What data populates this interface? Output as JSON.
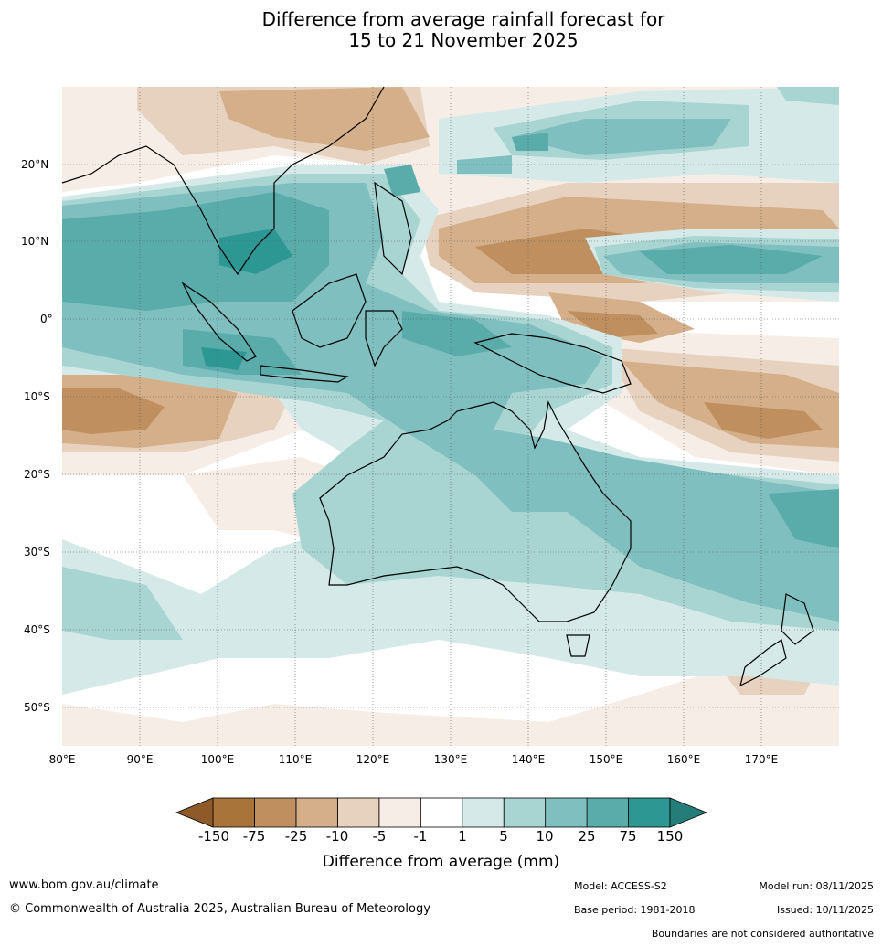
{
  "title": {
    "line1": "Difference from average rainfall forecast for",
    "line2": "15 to 21 November 2025"
  },
  "map": {
    "lon_labels": [
      "80°E",
      "90°E",
      "100°E",
      "110°E",
      "120°E",
      "130°E",
      "140°E",
      "150°E",
      "160°E",
      "170°E"
    ],
    "lat_labels": [
      "20°N",
      "10°N",
      "0°",
      "10°S",
      "20°S",
      "30°S",
      "40°S",
      "50°S"
    ],
    "lon_range": [
      80,
      180
    ],
    "lat_range": [
      -55,
      30
    ]
  },
  "legend": {
    "ticks": [
      "-150",
      "-75",
      "-25",
      "-10",
      "-5",
      "-1",
      "1",
      "5",
      "10",
      "25",
      "75",
      "150"
    ],
    "colors": [
      "#a97439",
      "#bf8f5f",
      "#d4af89",
      "#e6d2be",
      "#f6ede6",
      "#ffffff",
      "#d5eae8",
      "#a8d5d2",
      "#80bfbf",
      "#5aacab",
      "#2d9794"
    ],
    "extend_low_color": "#8e5a29",
    "extend_high_color": "#257d79",
    "title": "Difference from average (mm)"
  },
  "footer": {
    "website": "www.bom.gov.au/climate",
    "copyright": "© Commonwealth of Australia 2025, Australian Bureau of Meteorology",
    "model": "Model: ACCESS-S2",
    "model_run": "Model run: 08/11/2025",
    "base_period": "Base period: 1981-2018",
    "issued": "Issued: 10/11/2025",
    "disclaimer": "Boundaries are not considered authoritative"
  }
}
